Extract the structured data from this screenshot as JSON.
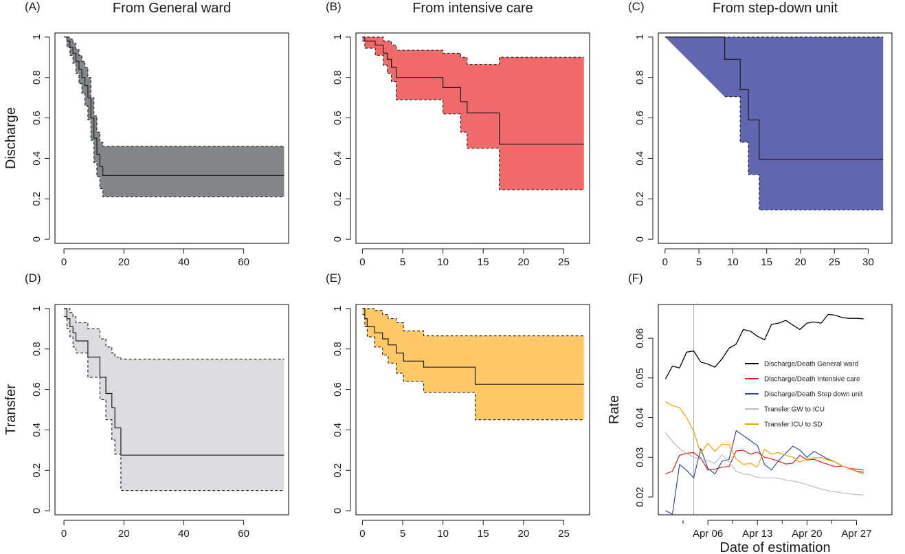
{
  "chart_data": [
    {
      "id": "A",
      "label": "(A)",
      "title": "From General ward",
      "ylabel": "Discharge",
      "type": "step-area",
      "fill": "#858689",
      "xlim": [
        -3,
        75
      ],
      "ylim": [
        -0.02,
        1.02
      ],
      "xticks": [
        0,
        20,
        40,
        60
      ],
      "yticks": [
        0.0,
        0.2,
        0.4,
        0.6,
        0.8,
        1.0
      ],
      "estimate": [
        [
          0,
          1
        ],
        [
          1,
          0.98
        ],
        [
          2,
          0.95
        ],
        [
          3,
          0.92
        ],
        [
          4,
          0.88
        ],
        [
          5,
          0.84
        ],
        [
          6,
          0.8
        ],
        [
          7,
          0.76
        ],
        [
          8,
          0.7
        ],
        [
          9,
          0.6
        ],
        [
          10,
          0.5
        ],
        [
          11,
          0.42
        ],
        [
          12,
          0.36
        ],
        [
          13,
          0.315
        ],
        [
          73.5,
          0.315
        ]
      ],
      "upper": [
        [
          1,
          1
        ],
        [
          2,
          0.99
        ],
        [
          3,
          0.97
        ],
        [
          4,
          0.94
        ],
        [
          5,
          0.91
        ],
        [
          6,
          0.88
        ],
        [
          7,
          0.85
        ],
        [
          8,
          0.8
        ],
        [
          9,
          0.7
        ],
        [
          10,
          0.61
        ],
        [
          11,
          0.53
        ],
        [
          12,
          0.48
        ],
        [
          13,
          0.46
        ],
        [
          73.5,
          0.46
        ]
      ],
      "lower": [
        [
          0,
          1
        ],
        [
          1,
          0.95
        ],
        [
          2,
          0.91
        ],
        [
          3,
          0.87
        ],
        [
          4,
          0.82
        ],
        [
          5,
          0.77
        ],
        [
          6,
          0.72
        ],
        [
          7,
          0.66
        ],
        [
          8,
          0.59
        ],
        [
          9,
          0.49
        ],
        [
          10,
          0.38
        ],
        [
          11,
          0.31
        ],
        [
          12,
          0.25
        ],
        [
          13,
          0.21
        ],
        [
          73.5,
          0.21
        ]
      ]
    },
    {
      "id": "B",
      "label": "(B)",
      "title": "From intensive care",
      "ylabel": "",
      "type": "step-area",
      "fill": "#f06a6a",
      "xlim": [
        -0.8,
        28.2
      ],
      "ylim": [
        -0.02,
        1.02
      ],
      "xticks": [
        0,
        5,
        10,
        15,
        20,
        25
      ],
      "yticks": [
        0.0,
        0.2,
        0.4,
        0.6,
        0.8,
        1.0
      ],
      "estimate": [
        [
          0,
          1
        ],
        [
          0.3,
          0.98
        ],
        [
          1.6,
          0.96
        ],
        [
          2.6,
          0.92
        ],
        [
          3.1,
          0.89
        ],
        [
          3.6,
          0.85
        ],
        [
          4.2,
          0.8
        ],
        [
          10,
          0.75
        ],
        [
          12.2,
          0.68
        ],
        [
          13,
          0.625
        ],
        [
          17,
          0.47
        ],
        [
          27.5,
          0.47
        ]
      ],
      "upper": [
        [
          0,
          1
        ],
        [
          1.6,
          1
        ],
        [
          2.6,
          0.98
        ],
        [
          3.6,
          0.96
        ],
        [
          4.2,
          0.935
        ],
        [
          10,
          0.92
        ],
        [
          12.2,
          0.9
        ],
        [
          13,
          0.865
        ],
        [
          17,
          0.9
        ],
        [
          27.5,
          0.9
        ]
      ],
      "lower": [
        [
          0,
          0.98
        ],
        [
          0.3,
          0.945
        ],
        [
          1.6,
          0.91
        ],
        [
          2.6,
          0.86
        ],
        [
          3.1,
          0.82
        ],
        [
          3.6,
          0.78
        ],
        [
          4.2,
          0.69
        ],
        [
          10,
          0.62
        ],
        [
          12.2,
          0.53
        ],
        [
          13,
          0.45
        ],
        [
          17,
          0.245
        ],
        [
          27.5,
          0.245
        ]
      ]
    },
    {
      "id": "C",
      "label": "(C)",
      "title": "From step-down unit",
      "ylabel": "",
      "type": "step-area",
      "fill": "#6066b0",
      "xlim": [
        -1,
        33.5
      ],
      "ylim": [
        -0.02,
        1.02
      ],
      "xticks": [
        0,
        5,
        10,
        15,
        20,
        25,
        30
      ],
      "yticks": [
        0.0,
        0.2,
        0.4,
        0.6,
        0.8,
        1.0
      ],
      "estimate": [
        [
          0,
          1
        ],
        [
          8.8,
          0.89
        ],
        [
          11.1,
          0.74
        ],
        [
          12.3,
          0.59
        ],
        [
          13.9,
          0.395
        ],
        [
          32.2,
          0.395
        ]
      ],
      "upper": [
        [
          0,
          1
        ],
        [
          32.2,
          1
        ]
      ],
      "lower": [
        [
          8.8,
          0.705
        ],
        [
          11.1,
          0.48
        ],
        [
          12.3,
          0.32
        ],
        [
          13.9,
          0.145
        ],
        [
          32.2,
          0.145
        ]
      ]
    },
    {
      "id": "D",
      "label": "(D)",
      "title": "",
      "ylabel": "Transfer",
      "type": "step-area",
      "fill": "#dcdcde",
      "xlim": [
        -3,
        75
      ],
      "ylim": [
        -0.02,
        1.02
      ],
      "xticks": [
        0,
        20,
        40,
        60
      ],
      "yticks": [
        0.0,
        0.2,
        0.4,
        0.6,
        0.8,
        1.0
      ],
      "estimate": [
        [
          0,
          1
        ],
        [
          1,
          0.95
        ],
        [
          2,
          0.91
        ],
        [
          3,
          0.88
        ],
        [
          4,
          0.84
        ],
        [
          8,
          0.76
        ],
        [
          12,
          0.66
        ],
        [
          14,
          0.58
        ],
        [
          16,
          0.51
        ],
        [
          17,
          0.41
        ],
        [
          19,
          0.275
        ],
        [
          73.5,
          0.275
        ]
      ],
      "upper": [
        [
          0,
          1
        ],
        [
          2,
          0.98
        ],
        [
          3,
          0.96
        ],
        [
          4,
          0.93
        ],
        [
          8,
          0.9
        ],
        [
          12,
          0.85
        ],
        [
          14,
          0.81
        ],
        [
          16,
          0.78
        ],
        [
          17,
          0.76
        ],
        [
          19,
          0.75
        ],
        [
          73.5,
          0.75
        ]
      ],
      "lower": [
        [
          0,
          0.96
        ],
        [
          1,
          0.9
        ],
        [
          2,
          0.86
        ],
        [
          3,
          0.81
        ],
        [
          4,
          0.78
        ],
        [
          8,
          0.66
        ],
        [
          12,
          0.55
        ],
        [
          14,
          0.45
        ],
        [
          16,
          0.35
        ],
        [
          17,
          0.28
        ],
        [
          19,
          0.1
        ],
        [
          73.5,
          0.1
        ]
      ]
    },
    {
      "id": "E",
      "label": "(E)",
      "title": "",
      "ylabel": "",
      "type": "step-area",
      "fill": "#fec866",
      "xlim": [
        -0.8,
        28.2
      ],
      "ylim": [
        -0.02,
        1.02
      ],
      "xticks": [
        0,
        5,
        10,
        15,
        20,
        25
      ],
      "yticks": [
        0.0,
        0.2,
        0.4,
        0.6,
        0.8,
        1.0
      ],
      "estimate": [
        [
          0,
          1
        ],
        [
          0.3,
          0.95
        ],
        [
          0.6,
          0.91
        ],
        [
          1.5,
          0.88
        ],
        [
          2.5,
          0.85
        ],
        [
          3.2,
          0.82
        ],
        [
          4.2,
          0.78
        ],
        [
          5.1,
          0.74
        ],
        [
          7.6,
          0.71
        ],
        [
          14,
          0.625
        ],
        [
          27.5,
          0.625
        ]
      ],
      "upper": [
        [
          0,
          1
        ],
        [
          1.5,
          0.99
        ],
        [
          2.5,
          0.97
        ],
        [
          3.2,
          0.95
        ],
        [
          4.2,
          0.93
        ],
        [
          5.1,
          0.89
        ],
        [
          7.6,
          0.865
        ],
        [
          14,
          0.865
        ],
        [
          27.5,
          0.865
        ]
      ],
      "lower": [
        [
          0,
          0.97
        ],
        [
          0.3,
          0.91
        ],
        [
          0.6,
          0.86
        ],
        [
          1.5,
          0.81
        ],
        [
          2.5,
          0.77
        ],
        [
          3.2,
          0.73
        ],
        [
          4.2,
          0.68
        ],
        [
          5.1,
          0.64
        ],
        [
          7.6,
          0.585
        ],
        [
          14,
          0.45
        ],
        [
          27.5,
          0.45
        ]
      ]
    },
    {
      "id": "F",
      "label": "(F)",
      "title": "",
      "ylabel": "Rate",
      "xlabel": "Date of estimation",
      "type": "line",
      "xlim": [
        -1,
        32
      ],
      "ylim": [
        0.0155,
        0.0685
      ],
      "x": [
        "Mar 31",
        "Apr 01",
        "Apr 02",
        "Apr 03",
        "Apr 04",
        "Apr 05",
        "Apr 06",
        "Apr 07",
        "Apr 08",
        "Apr 09",
        "Apr 10",
        "Apr 11",
        "Apr 12",
        "Apr 13",
        "Apr 14",
        "Apr 15",
        "Apr 16",
        "Apr 17",
        "Apr 18",
        "Apr 19",
        "Apr 20",
        "Apr 21",
        "Apr 22",
        "Apr 23",
        "Apr 24",
        "Apr 25",
        "Apr 26",
        "Apr 27",
        "Apr 28"
      ],
      "xticks": [
        {
          "label": "Apr 06",
          "index": 6
        },
        {
          "label": "Apr 13",
          "index": 13
        },
        {
          "label": "Apr 20",
          "index": 20
        },
        {
          "label": "Apr 27",
          "index": 27
        }
      ],
      "yticks": [
        0.02,
        0.03,
        0.04,
        0.05,
        0.06
      ],
      "vline_index": 4,
      "series": [
        {
          "name": "Discharge/Death General ward",
          "color": "#000000",
          "values": [
            0.0497,
            0.053,
            0.0525,
            0.0565,
            0.0568,
            0.054,
            0.0535,
            0.0527,
            0.0548,
            0.0575,
            0.0585,
            0.0622,
            0.0618,
            0.0605,
            0.0596,
            0.0635,
            0.0638,
            0.0645,
            0.0633,
            0.0622,
            0.0638,
            0.0641,
            0.0638,
            0.066,
            0.0658,
            0.0652,
            0.065,
            0.065,
            0.0649
          ]
        },
        {
          "name": "Discharge/Death Intensive care",
          "color": "#e31a1c",
          "values": [
            0.0258,
            0.0265,
            0.0305,
            0.031,
            0.0312,
            0.0298,
            0.0268,
            0.027,
            0.0275,
            0.0277,
            0.0316,
            0.0318,
            0.0308,
            0.0313,
            0.03,
            0.0296,
            0.029,
            0.0283,
            0.0285,
            0.0305,
            0.0293,
            0.0295,
            0.0288,
            0.0282,
            0.0276,
            0.0278,
            0.0272,
            0.027,
            0.0268
          ]
        },
        {
          "name": "Discharge/Death Step down unit",
          "color": "#2d4f9a",
          "values": [
            0.0165,
            0.0157,
            0.0282,
            0.0267,
            0.0248,
            0.0322,
            0.0272,
            0.0258,
            0.029,
            0.0295,
            0.0367,
            0.0355,
            0.0342,
            0.033,
            0.0282,
            0.0268,
            0.0292,
            0.031,
            0.0328,
            0.0318,
            0.03,
            0.0315,
            0.0305,
            0.0295,
            0.0288,
            0.0278,
            0.0271,
            0.0265,
            0.0262
          ]
        },
        {
          "name": "Transfer GW to ICU",
          "color": "#bdbdbd",
          "values": [
            0.0362,
            0.034,
            0.0322,
            0.031,
            0.03,
            0.0295,
            0.0292,
            0.0285,
            0.0306,
            0.0288,
            0.0265,
            0.0258,
            0.0256,
            0.0249,
            0.0248,
            0.0248,
            0.0247,
            0.0243,
            0.024,
            0.0236,
            0.0231,
            0.0225,
            0.022,
            0.0216,
            0.0213,
            0.021,
            0.0208,
            0.0206,
            0.0205
          ]
        },
        {
          "name": "Transfer ICU to SD",
          "color": "#f5a100",
          "values": [
            0.044,
            0.043,
            0.0425,
            0.04,
            0.0365,
            0.031,
            0.0335,
            0.0315,
            0.0333,
            0.0332,
            0.0296,
            0.0282,
            0.0285,
            0.0275,
            0.032,
            0.0308,
            0.0312,
            0.0305,
            0.03,
            0.0288,
            0.0296,
            0.0298,
            0.03,
            0.0293,
            0.0288,
            0.0278,
            0.0272,
            0.0264,
            0.0258
          ]
        }
      ]
    }
  ]
}
